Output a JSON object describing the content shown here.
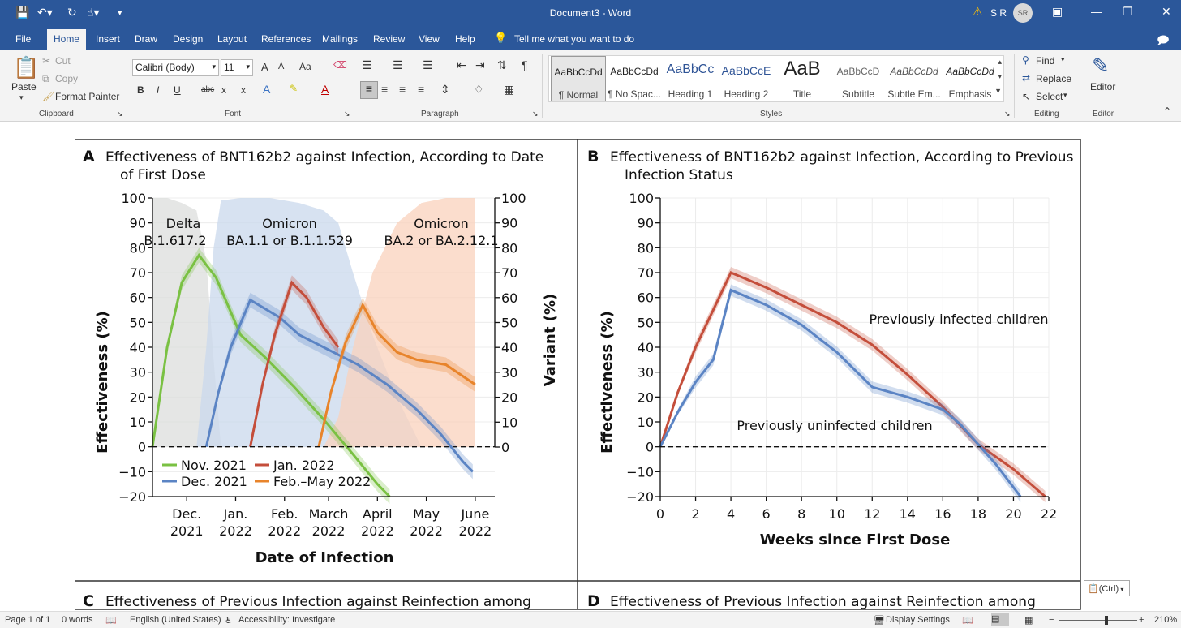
{
  "window": {
    "title": "Document3  -  Word",
    "user_initials": "S R",
    "avatar_initials": "SR",
    "warning_icon": "warning-icon"
  },
  "tabs": [
    "File",
    "Home",
    "Insert",
    "Draw",
    "Design",
    "Layout",
    "References",
    "Mailings",
    "Review",
    "View",
    "Help"
  ],
  "tell_me": "Tell me what you want to do",
  "ribbon": {
    "clipboard": {
      "paste": "Paste",
      "cut": "Cut",
      "copy": "Copy",
      "format_painter": "Format Painter",
      "label": "Clipboard"
    },
    "font": {
      "name": "Calibri (Body)",
      "size": "11",
      "label": "Font",
      "grow": "A",
      "shrink": "A",
      "case": "Aa",
      "bold": "B",
      "italic": "I",
      "underline": "U",
      "strike": "abc",
      "sub": "x",
      "sup": "x"
    },
    "paragraph": {
      "label": "Paragraph"
    },
    "styles": {
      "label": "Styles",
      "items": [
        {
          "preview": "AaBbCcDd",
          "name": "¶ Normal"
        },
        {
          "preview": "AaBbCcDd",
          "name": "¶ No Spac..."
        },
        {
          "preview": "AaBbCc",
          "name": "Heading 1"
        },
        {
          "preview": "AaBbCcE",
          "name": "Heading 2"
        },
        {
          "preview": "AaB",
          "name": "Title"
        },
        {
          "preview": "AaBbCcD",
          "name": "Subtitle"
        },
        {
          "preview": "AaBbCcDd",
          "name": "Subtle Em..."
        },
        {
          "preview": "AaBbCcDd",
          "name": "Emphasis"
        }
      ]
    },
    "editing": {
      "find": "Find",
      "replace": "Replace",
      "select": "Select",
      "label": "Editing"
    },
    "editor": {
      "button": "Editor",
      "label": "Editor"
    }
  },
  "figure": {
    "panel_a": {
      "letter": "A",
      "title_line1": "Effectiveness of BNT162b2 against Infection, According to Date",
      "title_line2": "of First Dose",
      "ylabel": "Effectiveness (%)",
      "y2label": "Variant (%)",
      "xlabel": "Date of Infection",
      "variant_labels": [
        {
          "l1": "Delta",
          "l2": "B.1.617.2"
        },
        {
          "l1": "Omicron",
          "l2": "BA.1.1 or B.1.1.529"
        },
        {
          "l1": "Omicron",
          "l2": "BA.2 or BA.2.12.1"
        }
      ],
      "legend": [
        "Nov. 2021",
        "Jan. 2022",
        "Dec. 2021",
        "Feb.–May 2022"
      ]
    },
    "panel_b": {
      "letter": "B",
      "title_line1": "Effectiveness of BNT162b2 against Infection, According to Previous",
      "title_line2": "Infection Status",
      "ylabel": "Effectiveness (%)",
      "xlabel": "Weeks since First Dose",
      "label_infected": "Previously infected children",
      "label_uninfected": "Previously uninfected children"
    },
    "panel_c_title": "Effectiveness of Previous Infection against Reinfection among",
    "panel_d_title": "Effectiveness of Previous Infection against Reinfection among",
    "panel_c_letter": "C",
    "panel_d_letter": "D"
  },
  "chart_data": [
    {
      "type": "line",
      "title": "Effectiveness of BNT162b2 against Infection, According to Date of First Dose",
      "xlabel": "Date of Infection",
      "ylabel": "Effectiveness (%)",
      "y2label": "Variant (%)",
      "ylim": [
        -20,
        100
      ],
      "y2lim": [
        0,
        100
      ],
      "yticks": [
        -20,
        -10,
        0,
        10,
        20,
        30,
        40,
        50,
        60,
        70,
        80,
        90,
        100
      ],
      "y2ticks": [
        0,
        10,
        20,
        30,
        40,
        50,
        60,
        70,
        80,
        90,
        100
      ],
      "xlim": [
        0,
        7
      ],
      "xticks": [
        {
          "x": 0.7,
          "l1": "Dec.",
          "l2": "2021"
        },
        {
          "x": 1.7,
          "l1": "Jan.",
          "l2": "2022"
        },
        {
          "x": 2.7,
          "l1": "Feb.",
          "l2": "2022"
        },
        {
          "x": 3.6,
          "l1": "March",
          "l2": "2022"
        },
        {
          "x": 4.6,
          "l1": "April",
          "l2": "2022"
        },
        {
          "x": 5.6,
          "l1": "May",
          "l2": "2022"
        },
        {
          "x": 6.6,
          "l1": "June",
          "l2": "2022"
        }
      ],
      "series": [
        {
          "name": "Nov. 2021",
          "color": "#7ac143",
          "x": [
            0.0,
            0.3,
            0.6,
            0.95,
            1.3,
            1.8,
            2.3,
            2.9,
            3.5,
            4.1,
            4.6,
            4.85
          ],
          "y": [
            0,
            40,
            66,
            77,
            68,
            45,
            36,
            24,
            11,
            -3,
            -15,
            -20
          ]
        },
        {
          "name": "Dec. 2021",
          "color": "#5b84c4",
          "x": [
            1.1,
            1.35,
            1.6,
            2.0,
            2.6,
            3.0,
            3.6,
            4.2,
            4.8,
            5.4,
            5.9,
            6.35,
            6.55
          ],
          "y": [
            0,
            22,
            40,
            59,
            52,
            45,
            39,
            33,
            25,
            15,
            5,
            -6,
            -10
          ]
        },
        {
          "name": "Jan. 2022",
          "color": "#c44e3b",
          "x": [
            2.0,
            2.25,
            2.5,
            2.85,
            3.15,
            3.5,
            3.8
          ],
          "y": [
            0,
            25,
            45,
            66,
            60,
            48,
            40
          ]
        },
        {
          "name": "Feb.–May 2022",
          "color": "#e8842b",
          "x": [
            3.4,
            3.65,
            3.95,
            4.3,
            4.6,
            5.0,
            5.4,
            6.0,
            6.6
          ],
          "y": [
            0,
            22,
            42,
            57,
            46,
            38,
            35,
            33,
            25
          ]
        }
      ],
      "variant_areas": [
        {
          "name": "Delta B.1.617.2",
          "color": "#dcdedc",
          "x": [
            0.0,
            0.3,
            0.6,
            0.9,
            1.1,
            1.25,
            1.4
          ],
          "y": [
            100,
            100,
            98,
            95,
            75,
            35,
            0
          ]
        },
        {
          "name": "Omicron BA.1.1 or B.1.1.529",
          "color": "#c9d8ec",
          "x": [
            0.9,
            1.1,
            1.25,
            1.4,
            1.8,
            2.4,
            3.0,
            3.5,
            3.8,
            4.1,
            4.5,
            5.0,
            5.5
          ],
          "y": [
            0,
            40,
            80,
            99,
            100,
            100,
            98,
            95,
            90,
            70,
            45,
            20,
            0
          ]
        },
        {
          "name": "Omicron BA.2 or BA.2.12.1",
          "color": "#fad2bc",
          "x": [
            3.5,
            3.8,
            4.1,
            4.5,
            5.0,
            5.5,
            6.0,
            6.6
          ],
          "y": [
            0,
            12,
            40,
            70,
            90,
            98,
            100,
            100
          ]
        }
      ]
    },
    {
      "type": "line",
      "title": "Effectiveness of BNT162b2 against Infection, According to Previous Infection Status",
      "xlabel": "Weeks since First Dose",
      "ylabel": "Effectiveness (%)",
      "ylim": [
        -20,
        100
      ],
      "xlim": [
        0,
        22
      ],
      "xticks": [
        0,
        2,
        4,
        6,
        8,
        10,
        12,
        14,
        16,
        18,
        20,
        22
      ],
      "yticks": [
        -20,
        -10,
        0,
        10,
        20,
        30,
        40,
        50,
        60,
        70,
        80,
        90,
        100
      ],
      "series": [
        {
          "name": "Previously infected children",
          "color": "#c44e3b",
          "x": [
            0,
            1,
            2,
            3,
            4,
            6,
            8,
            10,
            12,
            14,
            16,
            18,
            20,
            21.8
          ],
          "y": [
            0,
            22,
            40,
            55,
            70,
            64,
            57,
            50,
            41,
            29,
            16,
            1,
            -9,
            -20
          ]
        },
        {
          "name": "Previously uninfected children",
          "color": "#5b84c4",
          "x": [
            0,
            1,
            2,
            3,
            4,
            6,
            8,
            10,
            12,
            14,
            16,
            17,
            18,
            19,
            20.4
          ],
          "y": [
            0,
            14,
            26,
            35,
            63,
            57,
            49,
            38,
            24,
            20,
            15,
            9,
            1,
            -7,
            -20
          ]
        }
      ]
    }
  ],
  "statusbar": {
    "page": "Page 1 of 1",
    "words": "0 words",
    "language": "English (United States)",
    "accessibility": "Accessibility: Investigate",
    "display": "Display Settings",
    "zoom": "210%"
  },
  "ctrl_tag": "(Ctrl)"
}
